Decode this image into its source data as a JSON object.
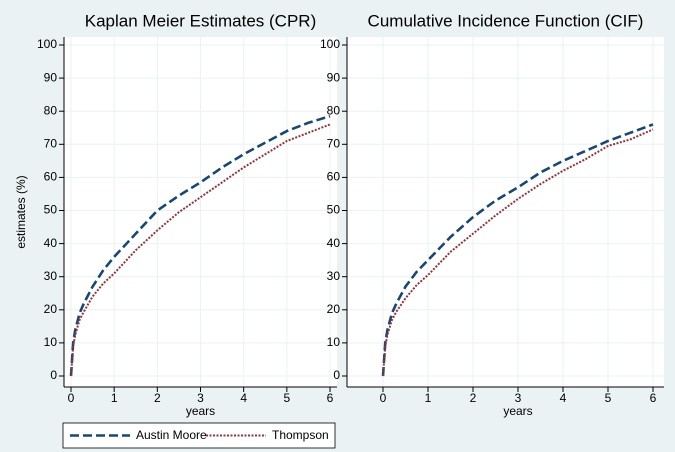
{
  "chart_data": [
    {
      "type": "line",
      "title": "Kaplan Meier Estimates (CPR)",
      "xlabel": "years",
      "ylabel": "estimates (%)",
      "x": [
        0,
        0.05,
        0.1,
        0.2,
        0.3,
        0.5,
        0.75,
        1,
        1.5,
        2,
        2.5,
        3,
        3.5,
        4,
        4.5,
        5,
        5.5,
        6
      ],
      "series": [
        {
          "name": "Austin Moore",
          "color": "#1a476f",
          "values": [
            0,
            10,
            14,
            19,
            22,
            27,
            32,
            36,
            43,
            50,
            54.5,
            58.5,
            63,
            67,
            70.5,
            74,
            76.5,
            78.5
          ]
        },
        {
          "name": "Thompson",
          "color": "#90353b",
          "values": [
            0,
            9,
            12.5,
            17,
            19.5,
            24,
            28,
            31,
            38,
            44,
            49.5,
            54,
            58.5,
            63,
            67,
            71,
            73.5,
            76
          ]
        }
      ],
      "xlim": [
        0,
        6
      ],
      "xticks": [
        0,
        1,
        2,
        3,
        4,
        5,
        6
      ],
      "ylim": [
        0,
        100
      ],
      "yticks": [
        0,
        10,
        20,
        30,
        40,
        50,
        60,
        70,
        80,
        90,
        100
      ],
      "grid": true
    },
    {
      "type": "line",
      "title": "Cumulative Incidence Function (CIF)",
      "xlabel": "years",
      "x": [
        0,
        0.05,
        0.1,
        0.2,
        0.3,
        0.5,
        0.75,
        1,
        1.5,
        2,
        2.5,
        3,
        3.5,
        4,
        4.5,
        5,
        5.5,
        6
      ],
      "series": [
        {
          "name": "Austin Moore",
          "color": "#1a476f",
          "values": [
            0,
            10,
            14,
            19,
            22,
            27,
            31.5,
            35,
            42,
            48,
            53,
            57,
            61.5,
            65,
            68,
            71,
            73.5,
            76
          ]
        },
        {
          "name": "Thompson",
          "color": "#90353b",
          "values": [
            0,
            9,
            12.5,
            17,
            19.5,
            23.5,
            27.5,
            30.5,
            37.5,
            43,
            48.5,
            53.5,
            58,
            62,
            65.5,
            69.5,
            71.5,
            74.5
          ]
        }
      ],
      "xlim": [
        0,
        6
      ],
      "xticks": [
        0,
        1,
        2,
        3,
        4,
        5,
        6
      ],
      "ylim": [
        0,
        100
      ],
      "yticks": [
        0,
        10,
        20,
        30,
        40,
        50,
        60,
        70,
        80,
        90,
        100
      ],
      "grid": true
    }
  ]
}
